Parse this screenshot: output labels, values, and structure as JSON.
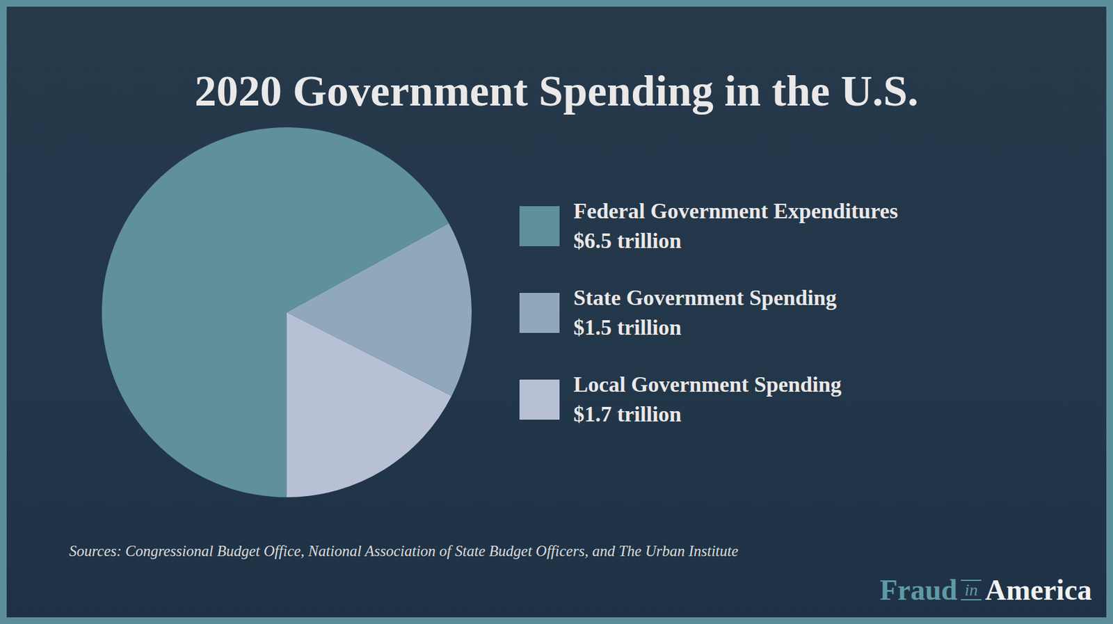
{
  "chart_data": {
    "type": "pie",
    "title": "2020 Government Spending in the U.S.",
    "categories": [
      "Federal Government Expenditures",
      "State Government Spending",
      "Local Government Spending"
    ],
    "values": [
      6.5,
      1.5,
      1.7
    ],
    "value_labels": [
      "$6.5 trillion",
      "$1.5 trillion",
      "$1.7 trillion"
    ],
    "colors": [
      "#5f909c",
      "#8fa8bc",
      "#b8c0d6"
    ],
    "legend": "right",
    "sources": "Sources: Congressional Budget Office, National Association of State Budget Officers, and The Urban Institute",
    "logo": [
      "Fraud",
      "in",
      "America"
    ]
  }
}
